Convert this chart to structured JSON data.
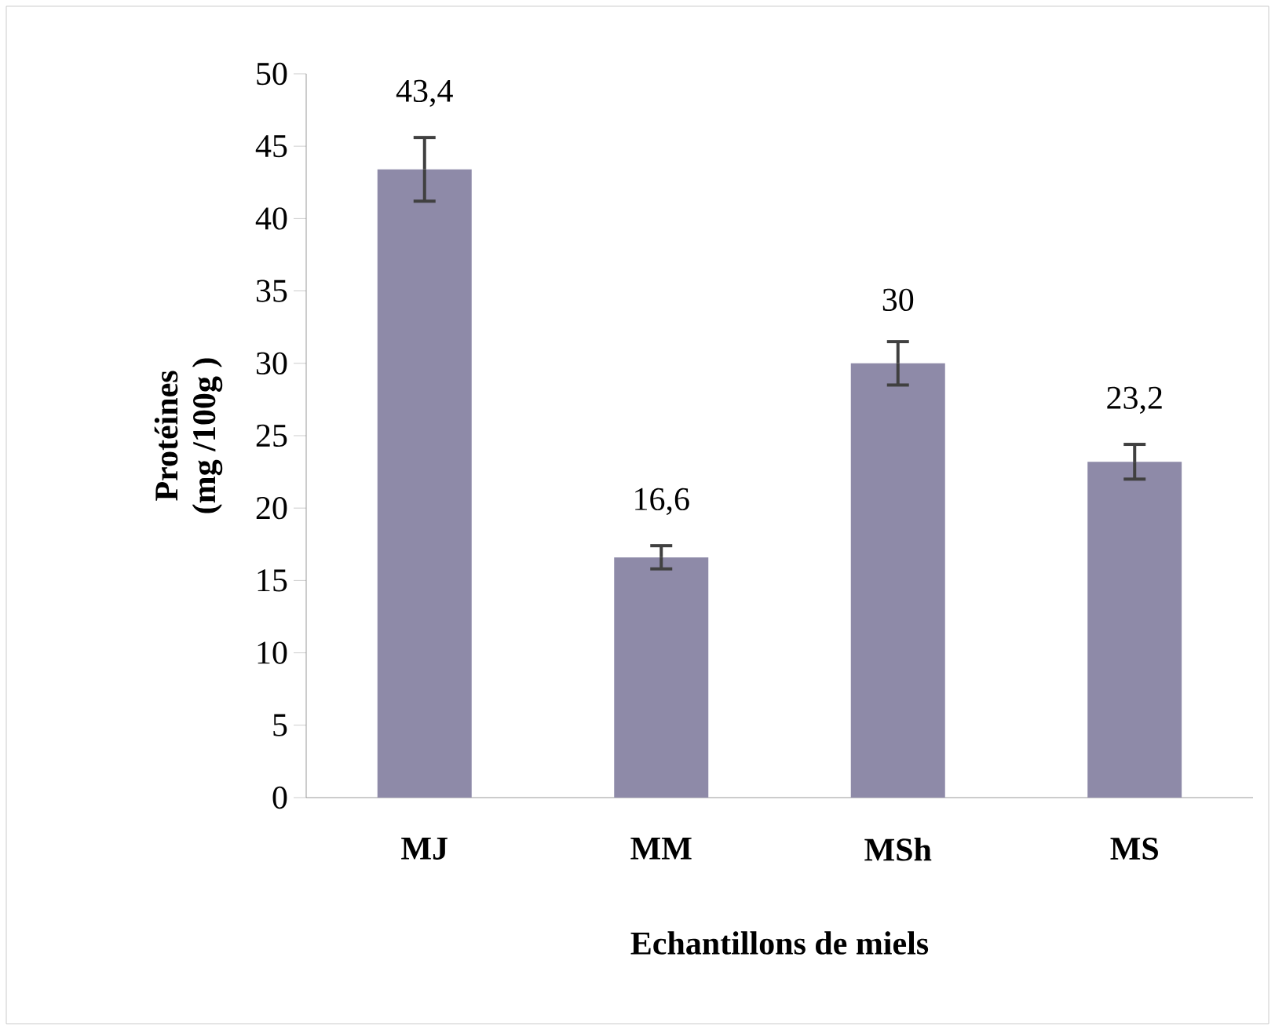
{
  "chart_data": {
    "type": "bar",
    "xlabel": "Echantillons de miels",
    "ylabel": "Protéines\n(mg /100g )",
    "categories": [
      "MJ",
      "MM",
      "MSh",
      "MS"
    ],
    "values": [
      43.4,
      16.6,
      30,
      23.2
    ],
    "errors": [
      2.2,
      0.8,
      1.5,
      1.2
    ],
    "value_labels": [
      "43,4",
      "16,6",
      "30",
      "23,2"
    ],
    "color": "#8e8aa8",
    "ylim": [
      0,
      50
    ],
    "yticks": [
      0,
      5,
      10,
      15,
      20,
      25,
      30,
      35,
      40,
      45,
      50
    ],
    "grid": false
  }
}
